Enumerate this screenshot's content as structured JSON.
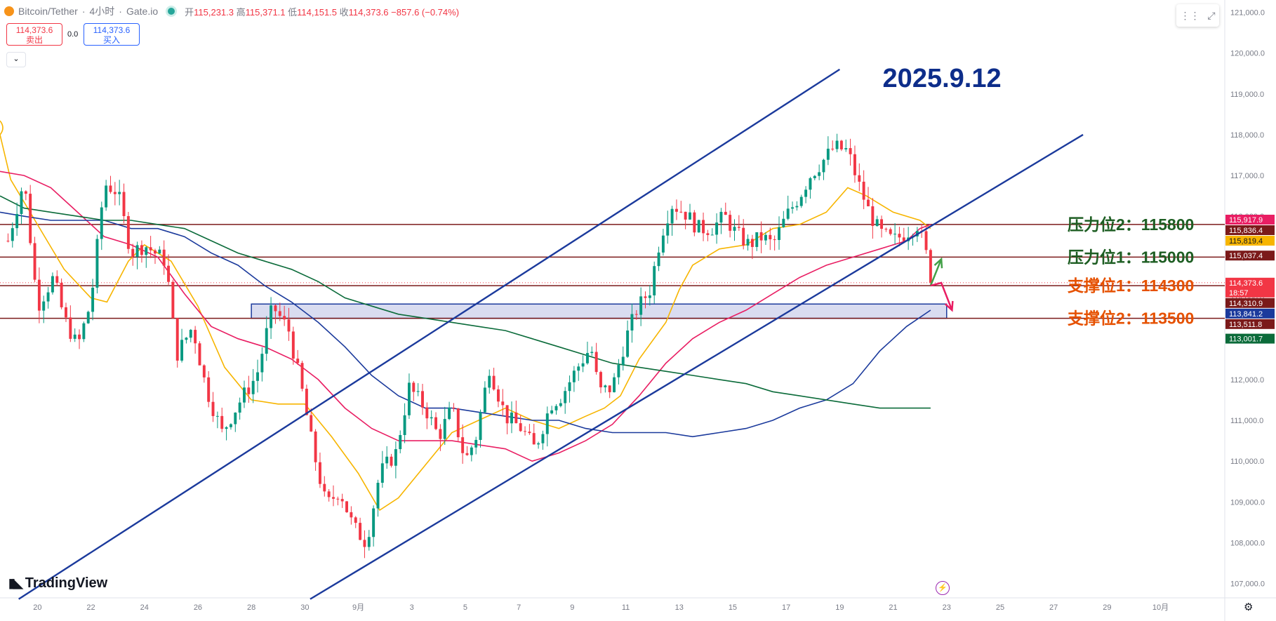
{
  "header": {
    "symbol": "Bitcoin/Tether",
    "interval": "4小时",
    "exchange": "Gate.io",
    "open_label": "开",
    "open": "115,231.3",
    "high_label": "高",
    "high": "115,371.1",
    "low_label": "低",
    "low": "114,151.5",
    "close_label": "收",
    "close": "114,373.6",
    "change": "−857.6 (−0.74%)"
  },
  "trade": {
    "sell_price": "114,373.6",
    "sell_label": "卖出",
    "spread": "0.0",
    "buy_price": "114,373.6",
    "buy_label": "买入",
    "collapse_icon": "chevron-down-icon"
  },
  "branding": {
    "logo_text": "TradingView"
  },
  "chart_data": {
    "type": "candlestick",
    "title": "2025.9.12",
    "ylim": [
      106650,
      121300
    ],
    "y_ticks": [
      {
        "value": 107000,
        "label": "107,000.0"
      },
      {
        "value": 108000,
        "label": "108,000.0"
      },
      {
        "value": 109000,
        "label": "109,000.0"
      },
      {
        "value": 110000,
        "label": "110,000.0"
      },
      {
        "value": 111000,
        "label": "111,000.0"
      },
      {
        "value": 112000,
        "label": "112,000.0"
      },
      {
        "value": 113000,
        "label": "113,000.0"
      },
      {
        "value": 114000,
        "label": "114,000.0"
      },
      {
        "value": 115000,
        "label": "115,000.0"
      },
      {
        "value": 116000,
        "label": "116,000.0"
      },
      {
        "value": 117000,
        "label": "117,000.0"
      },
      {
        "value": 118000,
        "label": "118,000.0"
      },
      {
        "value": 119000,
        "label": "119,000.0"
      },
      {
        "value": 120000,
        "label": "120,000.0"
      },
      {
        "value": 121000,
        "label": "121,000.0"
      }
    ],
    "x_ticks": [
      {
        "day": 20,
        "label": "20"
      },
      {
        "day": 22,
        "label": "22"
      },
      {
        "day": 24,
        "label": "24"
      },
      {
        "day": 26,
        "label": "26"
      },
      {
        "day": 28,
        "label": "28"
      },
      {
        "day": 30,
        "label": "30"
      },
      {
        "day": 32,
        "label": "9月"
      },
      {
        "day": 34,
        "label": "3"
      },
      {
        "day": 36,
        "label": "5"
      },
      {
        "day": 38,
        "label": "7"
      },
      {
        "day": 40,
        "label": "9"
      },
      {
        "day": 42,
        "label": "11"
      },
      {
        "day": 44,
        "label": "13"
      },
      {
        "day": 46,
        "label": "15"
      },
      {
        "day": 48,
        "label": "17"
      },
      {
        "day": 50,
        "label": "19"
      },
      {
        "day": 52,
        "label": "21"
      },
      {
        "day": 54,
        "label": "23"
      },
      {
        "day": 56,
        "label": "25"
      },
      {
        "day": 58,
        "label": "27"
      },
      {
        "day": 60,
        "label": "29"
      },
      {
        "day": 62,
        "label": "10月"
      }
    ],
    "x_unit": "day (1–31 = August; 32 = 1 September)",
    "x_range": [
      18.6,
      64.4
    ],
    "candles_close_path": [
      [
        18.9,
        115400
      ],
      [
        19.5,
        116900
      ],
      [
        20.0,
        113800
      ],
      [
        20.6,
        114500
      ],
      [
        21.0,
        113500
      ],
      [
        21.5,
        112800
      ],
      [
        22.0,
        113900
      ],
      [
        22.5,
        116800
      ],
      [
        23.0,
        116600
      ],
      [
        23.5,
        115100
      ],
      [
        24.0,
        115300
      ],
      [
        24.8,
        114900
      ],
      [
        25.2,
        112600
      ],
      [
        25.8,
        113300
      ],
      [
        26.3,
        111800
      ],
      [
        26.9,
        110700
      ],
      [
        27.6,
        111500
      ],
      [
        28.2,
        112100
      ],
      [
        28.8,
        113800
      ],
      [
        29.4,
        113200
      ],
      [
        29.9,
        111700
      ],
      [
        30.3,
        110300
      ],
      [
        30.8,
        108900
      ],
      [
        31.3,
        109300
      ],
      [
        31.8,
        108400
      ],
      [
        32.3,
        108000
      ],
      [
        32.8,
        109700
      ],
      [
        33.4,
        110200
      ],
      [
        33.9,
        111800
      ],
      [
        34.5,
        111300
      ],
      [
        35.0,
        110600
      ],
      [
        35.5,
        111300
      ],
      [
        36.0,
        110000
      ],
      [
        36.4,
        110600
      ],
      [
        36.9,
        112300
      ],
      [
        37.5,
        111100
      ],
      [
        38.1,
        110800
      ],
      [
        38.6,
        110300
      ],
      [
        39.2,
        111400
      ],
      [
        39.6,
        111600
      ],
      [
        40.2,
        112300
      ],
      [
        40.7,
        112800
      ],
      [
        41.0,
        111700
      ],
      [
        41.5,
        111800
      ],
      [
        42.0,
        113000
      ],
      [
        42.4,
        113700
      ],
      [
        42.9,
        114200
      ],
      [
        43.3,
        115500
      ],
      [
        43.7,
        116300
      ],
      [
        44.2,
        116100
      ],
      [
        44.7,
        115700
      ],
      [
        45.2,
        115700
      ],
      [
        45.7,
        116000
      ],
      [
        46.1,
        115600
      ],
      [
        46.6,
        115300
      ],
      [
        47.1,
        115500
      ],
      [
        47.5,
        115300
      ],
      [
        48.0,
        116000
      ],
      [
        48.5,
        116500
      ],
      [
        48.9,
        117000
      ],
      [
        49.3,
        117300
      ],
      [
        49.8,
        117700
      ],
      [
        50.3,
        117600
      ],
      [
        50.7,
        116800
      ],
      [
        51.1,
        116100
      ],
      [
        51.5,
        115600
      ],
      [
        52.0,
        115400
      ],
      [
        52.5,
        115600
      ],
      [
        52.9,
        115800
      ],
      [
        53.2,
        115200
      ],
      [
        53.4,
        114373.6
      ]
    ],
    "indicators": [
      {
        "type": "moving-average",
        "color": "#f7b500",
        "values": [
          [
            18.6,
            118000
          ],
          [
            19.0,
            116900
          ],
          [
            20.0,
            115800
          ],
          [
            21.0,
            114700
          ],
          [
            22.0,
            114000
          ],
          [
            22.6,
            113900
          ],
          [
            23.4,
            114900
          ],
          [
            24.0,
            115300
          ],
          [
            25.0,
            114900
          ],
          [
            26.0,
            113800
          ],
          [
            27.0,
            112300
          ],
          [
            28.0,
            111500
          ],
          [
            29.0,
            111400
          ],
          [
            30.0,
            111400
          ],
          [
            31.0,
            110600
          ],
          [
            32.0,
            109700
          ],
          [
            32.8,
            108800
          ],
          [
            33.5,
            109100
          ],
          [
            34.5,
            109900
          ],
          [
            35.5,
            110700
          ],
          [
            36.5,
            111000
          ],
          [
            37.5,
            111300
          ],
          [
            38.5,
            111000
          ],
          [
            39.5,
            110800
          ],
          [
            40.5,
            111100
          ],
          [
            41.2,
            111300
          ],
          [
            41.8,
            111600
          ],
          [
            42.5,
            112500
          ],
          [
            43.5,
            113400
          ],
          [
            44.0,
            114200
          ],
          [
            44.5,
            114800
          ],
          [
            45.5,
            115200
          ],
          [
            46.5,
            115300
          ],
          [
            47.5,
            115700
          ],
          [
            48.5,
            115800
          ],
          [
            49.5,
            116100
          ],
          [
            50.3,
            116700
          ],
          [
            51.0,
            116500
          ],
          [
            52.0,
            116100
          ],
          [
            53.0,
            115900
          ],
          [
            53.4,
            115700
          ]
        ]
      },
      {
        "type": "moving-average",
        "color": "#e91e63",
        "values": [
          [
            18.6,
            117100
          ],
          [
            19.5,
            117000
          ],
          [
            20.5,
            116700
          ],
          [
            21.5,
            116100
          ],
          [
            22.5,
            115500
          ],
          [
            23.5,
            115300
          ],
          [
            24.5,
            115000
          ],
          [
            25.5,
            114100
          ],
          [
            26.5,
            113300
          ],
          [
            27.5,
            113000
          ],
          [
            28.5,
            112800
          ],
          [
            29.5,
            112500
          ],
          [
            30.5,
            112000
          ],
          [
            31.5,
            111300
          ],
          [
            32.5,
            110800
          ],
          [
            33.5,
            110500
          ],
          [
            34.5,
            110500
          ],
          [
            35.5,
            110500
          ],
          [
            36.5,
            110400
          ],
          [
            37.5,
            110300
          ],
          [
            38.5,
            110000
          ],
          [
            39.5,
            110200
          ],
          [
            40.5,
            110500
          ],
          [
            41.5,
            110900
          ],
          [
            42.5,
            111600
          ],
          [
            43.5,
            112400
          ],
          [
            44.5,
            113000
          ],
          [
            45.5,
            113400
          ],
          [
            46.5,
            113700
          ],
          [
            47.5,
            114100
          ],
          [
            48.5,
            114500
          ],
          [
            49.5,
            114800
          ],
          [
            50.5,
            115000
          ],
          [
            51.5,
            115200
          ],
          [
            52.5,
            115400
          ],
          [
            53.0,
            115700
          ],
          [
            53.4,
            115800
          ]
        ]
      },
      {
        "type": "moving-average",
        "color": "#1b3a9c",
        "values": [
          [
            18.6,
            116100
          ],
          [
            19.5,
            116000
          ],
          [
            20.5,
            115900
          ],
          [
            21.5,
            115900
          ],
          [
            22.5,
            115900
          ],
          [
            23.5,
            115700
          ],
          [
            24.5,
            115700
          ],
          [
            25.5,
            115500
          ],
          [
            26.5,
            115100
          ],
          [
            27.5,
            114800
          ],
          [
            28.5,
            114300
          ],
          [
            29.5,
            113900
          ],
          [
            30.5,
            113400
          ],
          [
            31.5,
            112800
          ],
          [
            32.5,
            112100
          ],
          [
            33.5,
            111600
          ],
          [
            34.5,
            111300
          ],
          [
            35.5,
            111300
          ],
          [
            36.5,
            111200
          ],
          [
            37.5,
            111100
          ],
          [
            38.5,
            111000
          ],
          [
            39.5,
            111000
          ],
          [
            40.5,
            110800
          ],
          [
            41.5,
            110700
          ],
          [
            42.5,
            110700
          ],
          [
            43.5,
            110700
          ],
          [
            44.5,
            110600
          ],
          [
            45.5,
            110700
          ],
          [
            46.5,
            110800
          ],
          [
            47.5,
            111000
          ],
          [
            48.5,
            111300
          ],
          [
            49.5,
            111500
          ],
          [
            50.5,
            111900
          ],
          [
            51.5,
            112700
          ],
          [
            52.5,
            113300
          ],
          [
            53.4,
            113700
          ]
        ]
      },
      {
        "type": "moving-average",
        "color": "#0b6b3a",
        "values": [
          [
            18.6,
            116500
          ],
          [
            19.5,
            116200
          ],
          [
            20.5,
            116100
          ],
          [
            21.5,
            116000
          ],
          [
            22.5,
            115900
          ],
          [
            23.5,
            115900
          ],
          [
            24.5,
            115800
          ],
          [
            25.5,
            115700
          ],
          [
            26.5,
            115400
          ],
          [
            27.5,
            115100
          ],
          [
            28.5,
            114900
          ],
          [
            29.5,
            114700
          ],
          [
            30.5,
            114400
          ],
          [
            31.5,
            114000
          ],
          [
            32.5,
            113800
          ],
          [
            33.5,
            113600
          ],
          [
            34.5,
            113500
          ],
          [
            35.5,
            113400
          ],
          [
            36.5,
            113300
          ],
          [
            37.5,
            113200
          ],
          [
            38.5,
            113000
          ],
          [
            39.5,
            112800
          ],
          [
            40.5,
            112600
          ],
          [
            41.5,
            112400
          ],
          [
            42.5,
            112300
          ],
          [
            43.5,
            112200
          ],
          [
            44.5,
            112100
          ],
          [
            45.5,
            112000
          ],
          [
            46.5,
            111900
          ],
          [
            47.5,
            111700
          ],
          [
            48.5,
            111600
          ],
          [
            49.5,
            111500
          ],
          [
            50.5,
            111400
          ],
          [
            51.5,
            111300
          ],
          [
            52.5,
            111300
          ],
          [
            53.4,
            111300
          ]
        ]
      }
    ],
    "channel_lines": [
      {
        "color": "#1b3a9c",
        "from": [
          19.3,
          106620
        ],
        "to": [
          50.0,
          119600
        ]
      },
      {
        "color": "#1b3a9c",
        "from": [
          30.2,
          106620
        ],
        "to": [
          59.1,
          118000
        ]
      }
    ],
    "zone": {
      "x_range": [
        28.0,
        54.0
      ],
      "y_range": [
        113500,
        113850
      ],
      "color": "#1b3a9c"
    },
    "horizontal_levels": [
      {
        "price": 115800,
        "color": "#7b1a1a"
      },
      {
        "price": 115000,
        "color": "#7b1a1a"
      },
      {
        "price": 114300,
        "color": "#7b1a1a"
      },
      {
        "price": 113500,
        "color": "#7b1a1a"
      }
    ],
    "level_annotations": [
      {
        "text": "压力位2：115800",
        "price": 115800,
        "color": "#1e5e23"
      },
      {
        "text": "压力位1：115000",
        "price": 115000,
        "color": "#1e5e23"
      },
      {
        "text": "支撑位1：114300",
        "price": 114300,
        "color": "#e65100"
      },
      {
        "text": "支撑位2：113500",
        "price": 113500,
        "color": "#e65100"
      }
    ],
    "arrows": [
      {
        "color": "#43a047",
        "points": [
          [
            53.4,
            114300
          ],
          [
            53.8,
            114950
          ]
        ]
      },
      {
        "color": "#e91e63",
        "points": [
          [
            53.4,
            114300
          ],
          [
            53.8,
            114370
          ],
          [
            54.2,
            113700
          ]
        ]
      }
    ],
    "price_labels": [
      {
        "price": 115917.9,
        "label": "115,917.9",
        "bg": "#e91e63",
        "fg": "#ffffff"
      },
      {
        "price": 115836.4,
        "label": "115,836.4",
        "bg": "#7b1a1a",
        "fg": "#ffffff"
      },
      {
        "price": 115819.4,
        "label": "115,819.4",
        "bg": "#f7b500",
        "fg": "#131722"
      },
      {
        "price": 115037.4,
        "label": "115,037.4",
        "bg": "#7b1a1a",
        "fg": "#ffffff"
      },
      {
        "price": 114373.6,
        "label": "114,373.6",
        "countdown": "18:57",
        "bg": "#f23645",
        "fg": "#ffffff"
      },
      {
        "price": 114310.9,
        "label": "114,310.9",
        "bg": "#7b1a1a",
        "fg": "#ffffff"
      },
      {
        "price": 113841.2,
        "label": "113,841.2",
        "bg": "#1b3a9c",
        "fg": "#ffffff"
      },
      {
        "price": 113511.8,
        "label": "113,511.8",
        "bg": "#7b1a1a",
        "fg": "#ffffff"
      },
      {
        "price": 113001.7,
        "label": "113,001.7",
        "bg": "#0b6b3a",
        "fg": "#ffffff"
      }
    ],
    "up_color": "#089981",
    "down_color": "#f23645",
    "grid": false,
    "legend": "top-left"
  }
}
